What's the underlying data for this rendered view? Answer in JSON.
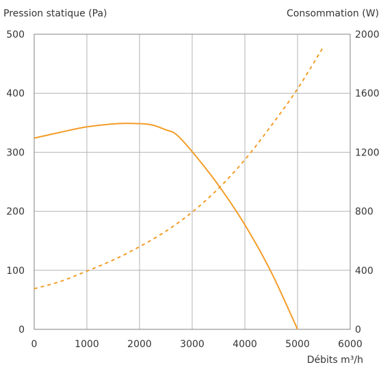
{
  "chart_data": {
    "type": "line",
    "y_left_label": "Pression statique (Pa)",
    "y_right_label": "Consommation (W)",
    "x_label": "Débits m³/h",
    "x_ticks": [
      0,
      1000,
      2000,
      3000,
      4000,
      5000,
      6000
    ],
    "y_left_ticks": [
      0,
      100,
      200,
      300,
      400,
      500
    ],
    "y_right_ticks": [
      0,
      400,
      800,
      1200,
      1600,
      2000
    ],
    "xlim": [
      0,
      6000
    ],
    "ylim_left": [
      0,
      500
    ],
    "ylim_right": [
      0,
      2000
    ],
    "grid": true,
    "series": [
      {
        "axis": "left",
        "style": "solid",
        "x": [
          0,
          500,
          1000,
          1500,
          1800,
          2200,
          2500,
          2700,
          3000,
          3500,
          4000,
          4500,
          5000
        ],
        "values": [
          324,
          334,
          343,
          348,
          349,
          347,
          338,
          330,
          301,
          244,
          177,
          97,
          0
        ]
      },
      {
        "axis": "right",
        "style": "dashed",
        "x": [
          0,
          500,
          1000,
          1500,
          2000,
          2500,
          3000,
          3500,
          4000,
          4500,
          5000,
          5500
        ],
        "values": [
          275,
          325,
          395,
          470,
          560,
          665,
          795,
          955,
          1150,
          1380,
          1630,
          1920
        ]
      }
    ],
    "colors": {
      "series": "#f39c26",
      "grid": "#b3b3b3",
      "frame": "#808080",
      "text": "#333333"
    }
  }
}
